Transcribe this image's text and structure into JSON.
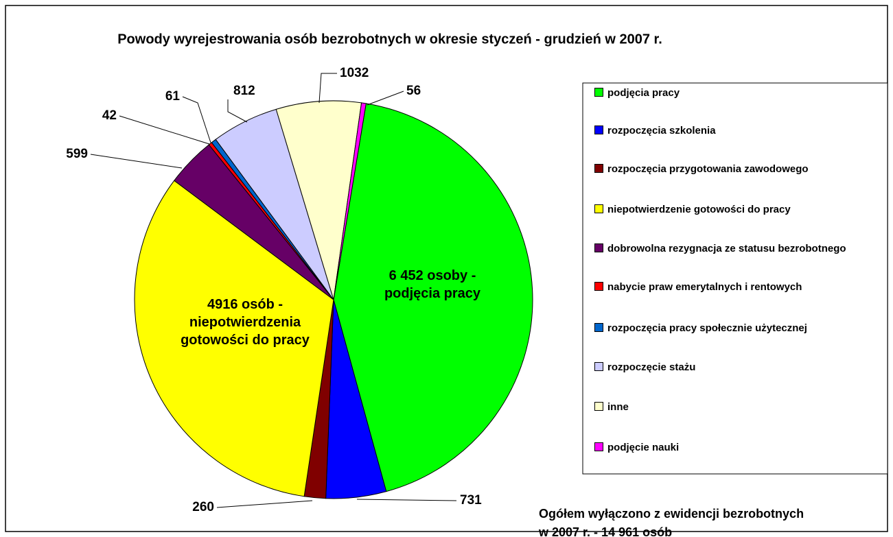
{
  "chart_data": {
    "type": "pie",
    "title": "Powody wyrejestrowania osób bezrobotnych w okresie styczeń - grudzień w 2007 r.",
    "categories": [
      "podjęcia pracy",
      "rozpoczęcia szkolenia",
      "rozpoczęcia przygotowania zawodowego",
      "niepotwierdzenie gotowości do pracy",
      "dobrowolna rezygnacja ze statusu bezrobotnego",
      "nabycie praw emerytalnych i rentowych",
      "rozpoczęcia pracy społecznie użytecznej",
      "rozpoczęcie stażu",
      "inne",
      "podjęcie nauki"
    ],
    "values": [
      6452,
      731,
      260,
      4916,
      599,
      42,
      61,
      812,
      1032,
      56
    ],
    "value_labels": [
      "6 452 osoby - podjęcia pracy",
      "731",
      "260",
      "4916 osób - niepotwierdzenia gotowości do pracy",
      "599",
      "42",
      "61",
      "812",
      "1032",
      "56"
    ],
    "colors": [
      "#00ff00",
      "#0000ff",
      "#800000",
      "#ffff00",
      "#660066",
      "#ff0000",
      "#0066cc",
      "#ccccff",
      "#ffffcc",
      "#ff00ff"
    ],
    "annotation": "Ogółem wyłączono z ewidencji bezrobotnych w 2007 r.  - 14 961 osób"
  }
}
